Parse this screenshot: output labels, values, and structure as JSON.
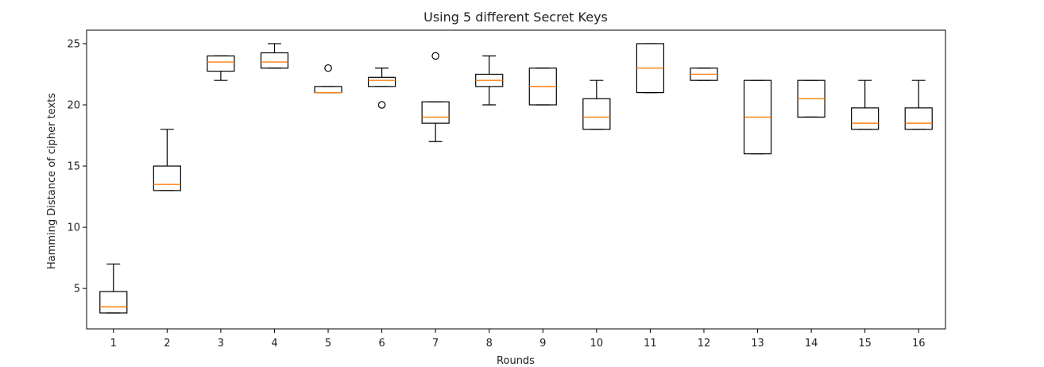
{
  "chart_data": {
    "type": "box",
    "title": "Using 5 different Secret Keys",
    "xlabel": "Rounds",
    "ylabel": "Hamming Distance of cipher texts",
    "categories": [
      "1",
      "2",
      "3",
      "4",
      "5",
      "6",
      "7",
      "8",
      "9",
      "10",
      "11",
      "12",
      "13",
      "14",
      "15",
      "16"
    ],
    "ylim": [
      1.7,
      26.1
    ],
    "yticks": [
      5,
      10,
      15,
      20,
      25
    ],
    "grid": false,
    "colors": {
      "box": "#000000",
      "median": "#ff7f0e",
      "flier": "#000000"
    },
    "boxes": [
      {
        "whisker_low": 3,
        "q1": 3,
        "median": 3.5,
        "q3": 4.75,
        "whisker_high": 7,
        "fliers": []
      },
      {
        "whisker_low": 13,
        "q1": 13,
        "median": 13.5,
        "q3": 15,
        "whisker_high": 18,
        "fliers": []
      },
      {
        "whisker_low": 22,
        "q1": 22.75,
        "median": 23.5,
        "q3": 24,
        "whisker_high": 24,
        "fliers": []
      },
      {
        "whisker_low": 23,
        "q1": 23,
        "median": 23.5,
        "q3": 24.25,
        "whisker_high": 25,
        "fliers": []
      },
      {
        "whisker_low": 21,
        "q1": 21,
        "median": 21,
        "q3": 21.5,
        "whisker_high": 21.5,
        "fliers": [
          23
        ]
      },
      {
        "whisker_low": 21.5,
        "q1": 21.5,
        "median": 22,
        "q3": 22.25,
        "whisker_high": 23,
        "fliers": [
          20
        ]
      },
      {
        "whisker_low": 17,
        "q1": 18.5,
        "median": 19,
        "q3": 20.25,
        "whisker_high": 20.25,
        "fliers": [
          24
        ]
      },
      {
        "whisker_low": 20,
        "q1": 21.5,
        "median": 22,
        "q3": 22.5,
        "whisker_high": 24,
        "fliers": []
      },
      {
        "whisker_low": 20,
        "q1": 20,
        "median": 21.5,
        "q3": 23,
        "whisker_high": 23,
        "fliers": []
      },
      {
        "whisker_low": 18,
        "q1": 18,
        "median": 19,
        "q3": 20.5,
        "whisker_high": 22,
        "fliers": []
      },
      {
        "whisker_low": 21,
        "q1": 21,
        "median": 23,
        "q3": 25,
        "whisker_high": 25,
        "fliers": []
      },
      {
        "whisker_low": 22,
        "q1": 22,
        "median": 22.5,
        "q3": 23,
        "whisker_high": 23,
        "fliers": []
      },
      {
        "whisker_low": 16,
        "q1": 16,
        "median": 19,
        "q3": 22,
        "whisker_high": 22,
        "fliers": []
      },
      {
        "whisker_low": 19,
        "q1": 19,
        "median": 20.5,
        "q3": 22,
        "whisker_high": 22,
        "fliers": []
      },
      {
        "whisker_low": 18,
        "q1": 18,
        "median": 18.5,
        "q3": 19.75,
        "whisker_high": 22,
        "fliers": []
      },
      {
        "whisker_low": 18,
        "q1": 18,
        "median": 18.5,
        "q3": 19.75,
        "whisker_high": 22,
        "fliers": []
      }
    ]
  }
}
